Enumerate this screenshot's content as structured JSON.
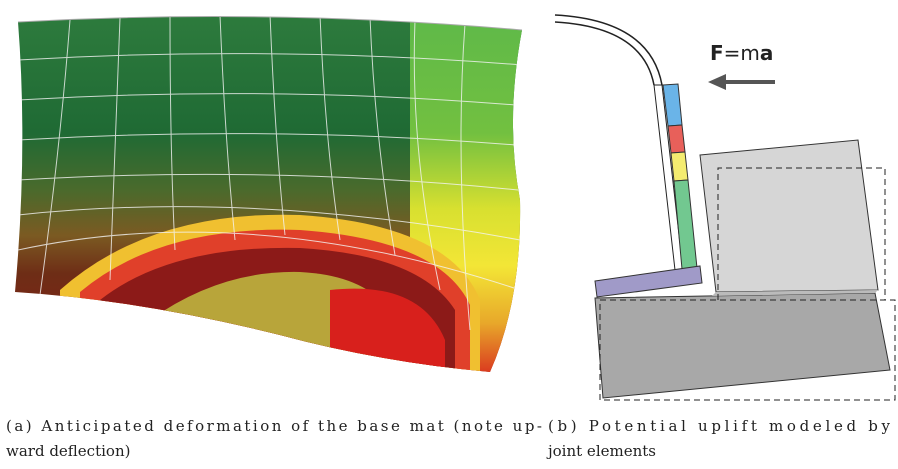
{
  "figure_a": {
    "caption_lines": [
      "(a) Anticipated deformation of the base mat (note up-",
      "ward deflection)"
    ]
  },
  "figure_b": {
    "force_label": [
      "F",
      "=m",
      "a"
    ],
    "caption_lines": [
      "(b) Potential uplift modeled by",
      "joint elements"
    ]
  }
}
